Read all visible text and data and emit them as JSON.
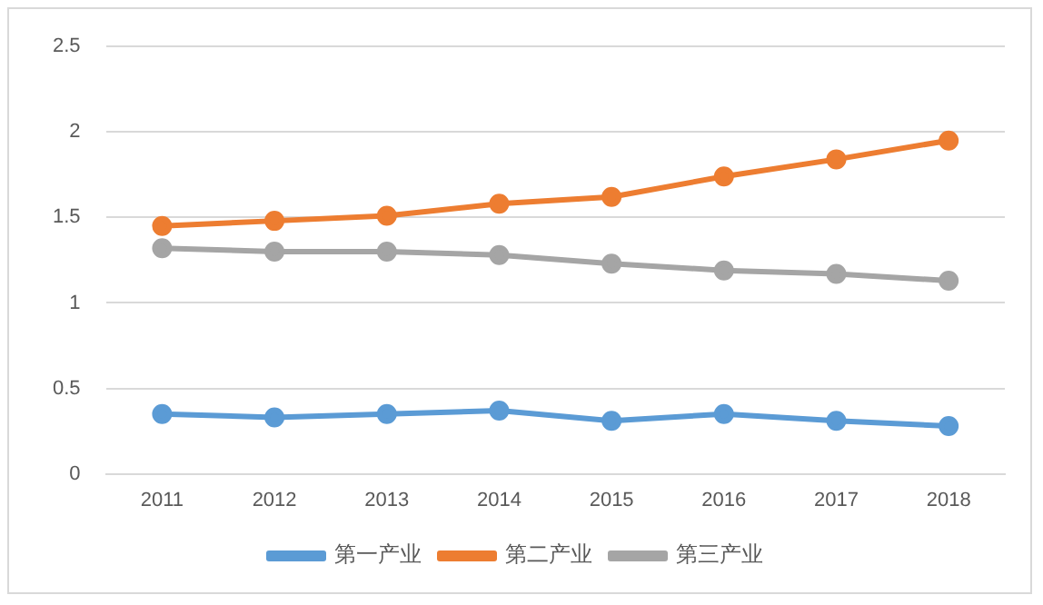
{
  "chart_data": {
    "type": "line",
    "categories": [
      "2011",
      "2012",
      "2013",
      "2014",
      "2015",
      "2016",
      "2017",
      "2018"
    ],
    "series": [
      {
        "name": "第一产业",
        "color": "#5b9bd5",
        "values": [
          0.35,
          0.33,
          0.35,
          0.37,
          0.31,
          0.35,
          0.31,
          0.28
        ]
      },
      {
        "name": "第二产业",
        "color": "#ed7d31",
        "values": [
          1.45,
          1.48,
          1.51,
          1.58,
          1.62,
          1.74,
          1.84,
          1.95
        ]
      },
      {
        "name": "第三产业",
        "color": "#a5a5a5",
        "values": [
          1.32,
          1.3,
          1.3,
          1.28,
          1.23,
          1.19,
          1.17,
          1.13
        ]
      }
    ],
    "ylim": [
      0,
      2.5
    ],
    "yticks": [
      0,
      0.5,
      1,
      1.5,
      2,
      2.5
    ],
    "grid": "y",
    "legend": "bottom",
    "marker": "circle",
    "line_style": "solid"
  }
}
